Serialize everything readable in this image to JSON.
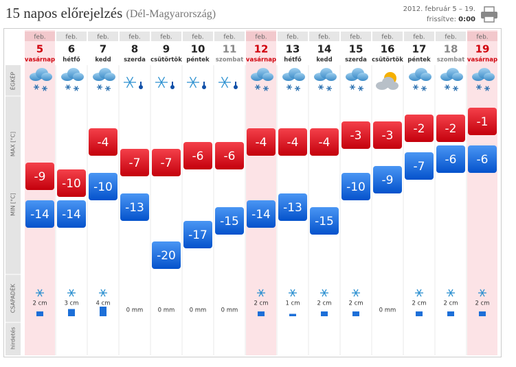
{
  "header": {
    "title": "15 napos előrejelzés",
    "region": "(Dél-Magyarország)",
    "period": "2012. február 5 – 19.",
    "updated_label": "frissítve:",
    "updated_time": "0:00"
  },
  "row_labels": [
    "ÉGKÉP",
    "MAX [°C]",
    "MIN [°C]",
    "CSAPADÉK",
    "hirdetés"
  ],
  "days": [
    {
      "month": "feb.",
      "day": 5,
      "weekday": "vasárnap",
      "sky": "cloud-snow",
      "max": -9,
      "min": -14,
      "precip": 2,
      "precip_label": "2 cm"
    },
    {
      "month": "feb.",
      "day": 6,
      "weekday": "hétfő",
      "sky": "cloud-snow",
      "max": -10,
      "min": -14,
      "precip": 3,
      "precip_label": "3 cm"
    },
    {
      "month": "feb.",
      "day": 7,
      "weekday": "kedd",
      "sky": "cloud-snow",
      "max": -4,
      "min": -10,
      "precip": 4,
      "precip_label": "4 cm"
    },
    {
      "month": "feb.",
      "day": 8,
      "weekday": "szerda",
      "sky": "snow-cold",
      "max": -7,
      "min": -13,
      "precip": 0,
      "precip_label": "0 mm"
    },
    {
      "month": "feb.",
      "day": 9,
      "weekday": "csütörtök",
      "sky": "snow-cold",
      "max": -7,
      "min": -20,
      "precip": 0,
      "precip_label": "0 mm"
    },
    {
      "month": "feb.",
      "day": 10,
      "weekday": "péntek",
      "sky": "snow-cold",
      "max": -6,
      "min": -17,
      "precip": 0,
      "precip_label": "0 mm"
    },
    {
      "month": "feb.",
      "day": 11,
      "weekday": "szombat",
      "sky": "snow-cold",
      "max": -6,
      "min": -15,
      "precip": 0,
      "precip_label": "0 mm"
    },
    {
      "month": "feb.",
      "day": 12,
      "weekday": "vasárnap",
      "sky": "cloud-snow",
      "max": -4,
      "min": -14,
      "precip": 2,
      "precip_label": "2 cm"
    },
    {
      "month": "feb.",
      "day": 13,
      "weekday": "hétfő",
      "sky": "cloud-snow",
      "max": -4,
      "min": -13,
      "precip": 1,
      "precip_label": "1 cm"
    },
    {
      "month": "feb.",
      "day": 14,
      "weekday": "kedd",
      "sky": "cloud-snow",
      "max": -4,
      "min": -15,
      "precip": 2,
      "precip_label": "2 cm"
    },
    {
      "month": "feb.",
      "day": 15,
      "weekday": "szerda",
      "sky": "cloud-snow",
      "max": -3,
      "min": -10,
      "precip": 2,
      "precip_label": "2 cm"
    },
    {
      "month": "feb.",
      "day": 16,
      "weekday": "csütörtök",
      "sky": "sun-cloud",
      "max": -3,
      "min": -9,
      "precip": 0,
      "precip_label": "0 mm"
    },
    {
      "month": "feb.",
      "day": 17,
      "weekday": "péntek",
      "sky": "cloud-snow",
      "max": -2,
      "min": -7,
      "precip": 2,
      "precip_label": "2 cm"
    },
    {
      "month": "feb.",
      "day": 18,
      "weekday": "szombat",
      "sky": "cloud-snow",
      "max": -2,
      "min": -6,
      "precip": 2,
      "precip_label": "2 cm"
    },
    {
      "month": "feb.",
      "day": 19,
      "weekday": "vasárnap",
      "sky": "cloud-snow",
      "max": -1,
      "min": -6,
      "precip": 2,
      "precip_label": "2 cm"
    }
  ]
}
